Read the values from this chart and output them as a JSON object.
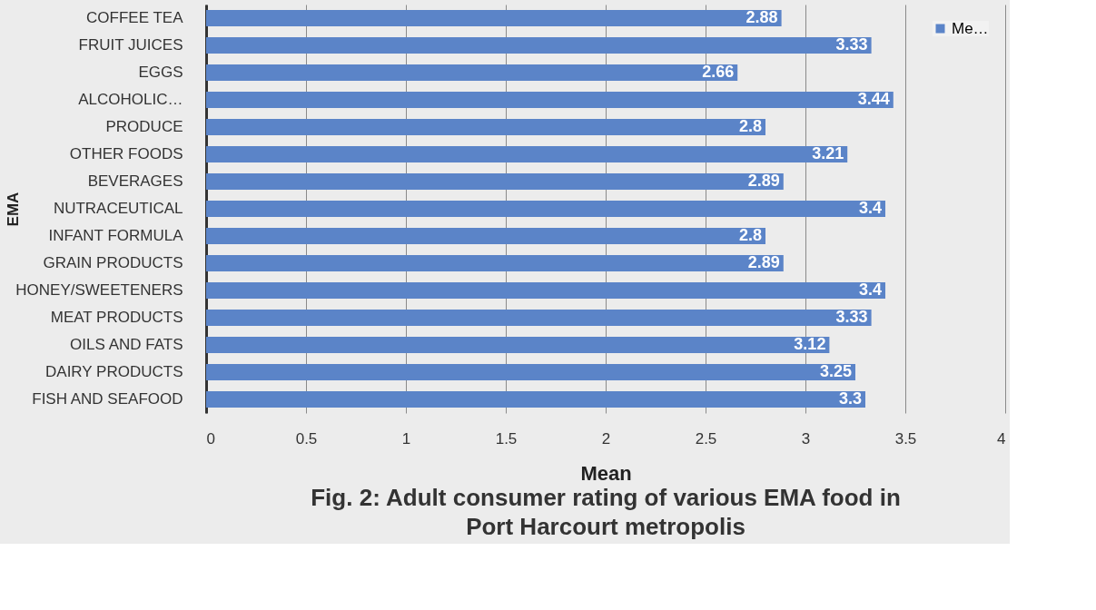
{
  "chart_data": {
    "type": "bar",
    "orientation": "horizontal",
    "title": "Fig. 2: Adult consumer rating of various EMA food in Port Harcourt metropolis",
    "xlabel": "Mean",
    "ylabel": "EMA",
    "categories": [
      "COFFEE TEA",
      "FRUIT JUICES",
      "EGGS",
      "ALCOHOLIC…",
      "PRODUCE",
      "OTHER FOODS",
      "BEVERAGES",
      "NUTRACEUTICAL",
      "INFANT FORMULA",
      "GRAIN PRODUCTS",
      "HONEY/SWEETENERS",
      "MEAT PRODUCTS",
      "OILS AND FATS",
      "DAIRY PRODUCTS",
      "FISH AND SEAFOOD"
    ],
    "series": [
      {
        "name": "Me…",
        "color": "#5b84c8",
        "values": [
          2.88,
          3.33,
          2.66,
          3.44,
          2.8,
          3.21,
          2.89,
          3.4,
          2.8,
          2.89,
          3.4,
          3.33,
          3.12,
          3.25,
          3.3
        ]
      }
    ],
    "xlim": [
      0,
      4
    ],
    "xticks": [
      0,
      0.5,
      1,
      1.5,
      2,
      2.5,
      3,
      3.5,
      4
    ],
    "grid": "x",
    "legend": "top right",
    "data_labels": true
  }
}
